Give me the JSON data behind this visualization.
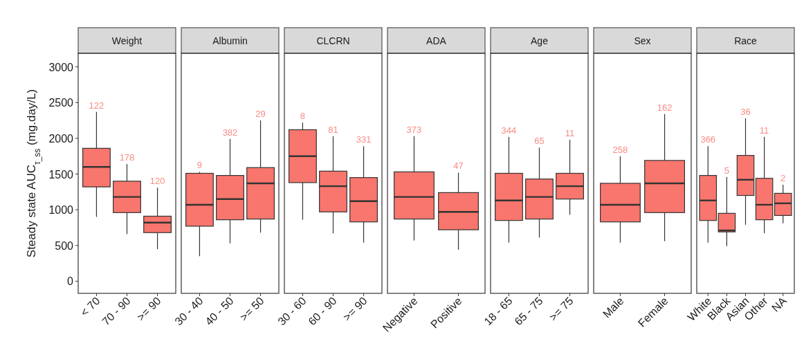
{
  "chart_data": [
    {
      "type": "box",
      "title": "Weight",
      "ylabel": "Steady state AUC$_{τ_ss}$  (mg.day/L)",
      "categories": [
        "< 70",
        "70 - 90",
        ">= 90"
      ],
      "ylim": [
        -170,
        3190
      ],
      "yticks": [
        0,
        500,
        1000,
        1500,
        2000,
        2500,
        3000
      ],
      "grid": false,
      "series": [
        {
          "color": "#f8766d",
          "boxes": [
            {
              "low": 900,
              "q1": 1320,
              "median": 1600,
              "q3": 1860,
              "high": 2370
            },
            {
              "low": 660,
              "q1": 960,
              "median": 1180,
              "q3": 1400,
              "high": 1640
            },
            {
              "low": 450,
              "q1": 680,
              "median": 820,
              "q3": 910,
              "high": 1310
            }
          ]
        }
      ],
      "annotations": [
        {
          "text": "122",
          "x": "< 70",
          "y": 2370
        },
        {
          "text": "178",
          "x": "70 - 90",
          "y": 1640
        },
        {
          "text": "120",
          "x": ">= 90",
          "y": 1310
        }
      ]
    },
    {
      "type": "box",
      "title": "Albumin",
      "categories": [
        "30 - 40",
        "40 - 50",
        ">= 50"
      ],
      "ylim": [
        -170,
        3190
      ],
      "tick_labels": "x",
      "grid": false,
      "series": [
        {
          "color": "#f8766d",
          "boxes": [
            {
              "low": 350,
              "q1": 770,
              "median": 1070,
              "q3": 1510,
              "high": 1530
            },
            {
              "low": 530,
              "q1": 860,
              "median": 1150,
              "q3": 1480,
              "high": 1990
            },
            {
              "low": 680,
              "q1": 870,
              "median": 1370,
              "q3": 1590,
              "high": 2250
            }
          ]
        }
      ],
      "annotations": [
        {
          "text": "9",
          "x": "30 - 40",
          "y": 1530
        },
        {
          "text": "382",
          "x": "40 - 50",
          "y": 1990
        },
        {
          "text": "29",
          "x": ">= 50",
          "y": 2250
        }
      ]
    },
    {
      "type": "box",
      "title": "CLCRN",
      "categories": [
        "30 - 60",
        "60 - 90",
        ">= 90"
      ],
      "ylim": [
        -170,
        3190
      ],
      "tick_labels": "x",
      "grid": false,
      "series": [
        {
          "color": "#f8766d",
          "boxes": [
            {
              "low": 860,
              "q1": 1380,
              "median": 1750,
              "q3": 2120,
              "high": 2220
            },
            {
              "low": 670,
              "q1": 970,
              "median": 1330,
              "q3": 1540,
              "high": 2030
            },
            {
              "low": 540,
              "q1": 830,
              "median": 1120,
              "q3": 1450,
              "high": 1890
            }
          ]
        }
      ],
      "annotations": [
        {
          "text": "8",
          "x": "30 - 60",
          "y": 2220
        },
        {
          "text": "81",
          "x": "60 - 90",
          "y": 2030
        },
        {
          "text": "331",
          "x": ">= 90",
          "y": 1890
        }
      ]
    },
    {
      "type": "box",
      "title": "ADA",
      "categories": [
        "Negative",
        "Positive"
      ],
      "ylim": [
        -170,
        3190
      ],
      "tick_labels": "x",
      "grid": false,
      "series": [
        {
          "color": "#f8766d",
          "boxes": [
            {
              "low": 570,
              "q1": 870,
              "median": 1180,
              "q3": 1530,
              "high": 2030
            },
            {
              "low": 440,
              "q1": 720,
              "median": 970,
              "q3": 1240,
              "high": 1520
            }
          ]
        }
      ],
      "annotations": [
        {
          "text": "373",
          "x": "Negative",
          "y": 2030
        },
        {
          "text": "47",
          "x": "Positive",
          "y": 1520
        }
      ]
    },
    {
      "type": "box",
      "title": "Age",
      "categories": [
        "18 - 65",
        "65 - 75",
        ">= 75"
      ],
      "ylim": [
        -170,
        3190
      ],
      "tick_labels": "x",
      "grid": false,
      "series": [
        {
          "color": "#f8766d",
          "boxes": [
            {
              "low": 540,
              "q1": 850,
              "median": 1130,
              "q3": 1510,
              "high": 2020
            },
            {
              "low": 610,
              "q1": 870,
              "median": 1180,
              "q3": 1430,
              "high": 1870
            },
            {
              "low": 930,
              "q1": 1150,
              "median": 1330,
              "q3": 1510,
              "high": 1980
            }
          ]
        }
      ],
      "annotations": [
        {
          "text": "344",
          "x": "18 - 65",
          "y": 2020
        },
        {
          "text": "65",
          "x": "65 - 75",
          "y": 1870
        },
        {
          "text": "11",
          "x": ">= 75",
          "y": 1980
        }
      ]
    },
    {
      "type": "box",
      "title": "Sex",
      "categories": [
        "Male",
        "Female"
      ],
      "ylim": [
        -170,
        3190
      ],
      "tick_labels": "x",
      "grid": false,
      "series": [
        {
          "color": "#f8766d",
          "boxes": [
            {
              "low": 540,
              "q1": 830,
              "median": 1070,
              "q3": 1370,
              "high": 1750
            },
            {
              "low": 560,
              "q1": 960,
              "median": 1370,
              "q3": 1690,
              "high": 2340
            }
          ]
        }
      ],
      "annotations": [
        {
          "text": "258",
          "x": "Male",
          "y": 1750
        },
        {
          "text": "162",
          "x": "Female",
          "y": 2340
        }
      ]
    },
    {
      "type": "box",
      "title": "Race",
      "categories": [
        "White",
        "Black",
        "Asian",
        "Other",
        "NA"
      ],
      "ylim": [
        -170,
        3190
      ],
      "tick_labels": "x",
      "grid": false,
      "series": [
        {
          "color": "#f8766d",
          "boxes": [
            {
              "low": 540,
              "q1": 850,
              "median": 1130,
              "q3": 1480,
              "high": 1890
            },
            {
              "low": 490,
              "q1": 690,
              "median": 710,
              "q3": 950,
              "high": 1460
            },
            {
              "low": 790,
              "q1": 1200,
              "median": 1420,
              "q3": 1760,
              "high": 2280
            },
            {
              "low": 670,
              "q1": 860,
              "median": 1070,
              "q3": 1440,
              "high": 2020
            },
            {
              "low": 810,
              "q1": 920,
              "median": 1090,
              "q3": 1230,
              "high": 1350
            }
          ]
        }
      ],
      "annotations": [
        {
          "text": "366",
          "x": "White",
          "y": 1890
        },
        {
          "text": "5",
          "x": "Black",
          "y": 1460
        },
        {
          "text": "36",
          "x": "Asian",
          "y": 2280
        },
        {
          "text": "11",
          "x": "Other",
          "y": 2020
        },
        {
          "text": "2",
          "x": "NA",
          "y": 1350
        }
      ]
    }
  ]
}
